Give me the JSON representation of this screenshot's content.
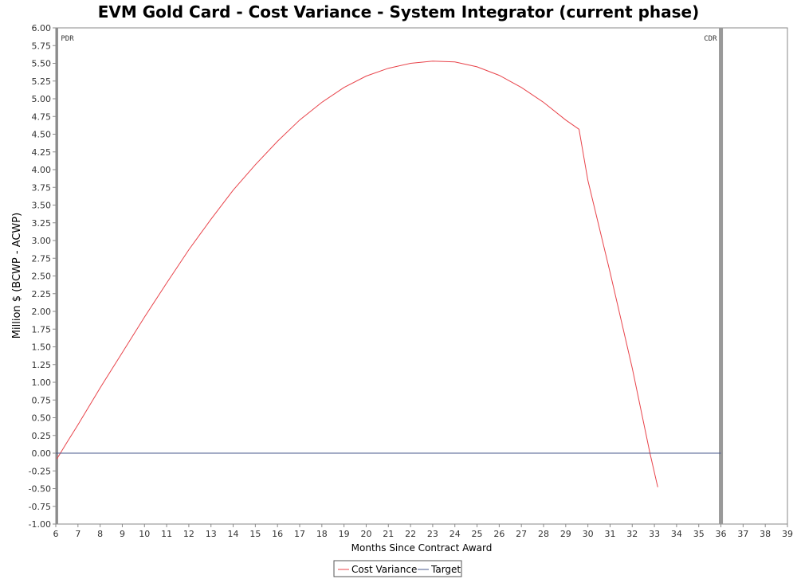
{
  "chart_data": {
    "type": "line",
    "title": "EVM Gold Card - Cost Variance - System Integrator (current phase)",
    "xlabel": "Months Since Contract Award",
    "ylabel": "Million $ (BCWP - ACWP)",
    "xlim": [
      6,
      39
    ],
    "ylim": [
      -1.0,
      6.0
    ],
    "xticks": [
      6,
      7,
      8,
      9,
      10,
      11,
      12,
      13,
      14,
      15,
      16,
      17,
      18,
      19,
      20,
      21,
      22,
      23,
      24,
      25,
      26,
      27,
      28,
      29,
      30,
      31,
      32,
      33,
      34,
      35,
      36,
      37,
      38,
      39
    ],
    "yticks": [
      -1.0,
      -0.75,
      -0.5,
      -0.25,
      0.0,
      0.25,
      0.5,
      0.75,
      1.0,
      1.25,
      1.5,
      1.75,
      2.0,
      2.25,
      2.5,
      2.75,
      3.0,
      3.25,
      3.5,
      3.75,
      4.0,
      4.25,
      4.5,
      4.75,
      5.0,
      5.25,
      5.5,
      5.75,
      6.0
    ],
    "grid": false,
    "legend_position": "bottom",
    "series": [
      {
        "name": "Cost Variance",
        "color": "#e8434a",
        "x": [
          6.05,
          6.5,
          7.0,
          8.0,
          9.0,
          10.0,
          11.0,
          12.0,
          13.0,
          14.0,
          15.0,
          16.0,
          17.0,
          18.0,
          19.0,
          20.0,
          21.0,
          22.0,
          23.0,
          24.0,
          25.0,
          26.0,
          27.0,
          28.0,
          29.0,
          29.6,
          30.0,
          31.0,
          32.0,
          32.8,
          33.15
        ],
        "y": [
          -0.08,
          0.15,
          0.4,
          0.92,
          1.42,
          1.92,
          2.4,
          2.87,
          3.3,
          3.71,
          4.07,
          4.4,
          4.7,
          4.95,
          5.16,
          5.32,
          5.43,
          5.5,
          5.53,
          5.52,
          5.45,
          5.33,
          5.16,
          4.95,
          4.7,
          4.57,
          3.85,
          2.55,
          1.2,
          0.0,
          -0.48
        ]
      },
      {
        "name": "Target",
        "color": "#4a5a8c",
        "x": [
          6.0,
          36.0
        ],
        "y": [
          0.0,
          0.0
        ]
      }
    ],
    "markers": [
      {
        "label": "PDR",
        "x": 6.05,
        "color": "#8c8c8c"
      },
      {
        "label": "CDR",
        "x": 36.0,
        "color": "#999999"
      }
    ]
  }
}
